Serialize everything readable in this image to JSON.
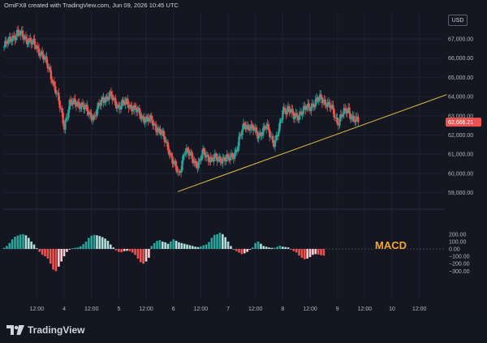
{
  "header": {
    "text": "OmiFX8 created with TradingView.com, Jun 09, 2026 10:45 UTC"
  },
  "currency_label": "USD",
  "last_price_tag": "62,666.21",
  "macd_annotation": "MACD",
  "brand": {
    "name": "TradingView",
    "logo_icon": "tradingview-logo-icon"
  },
  "colors": {
    "background": "#141722",
    "bull": "#26a69a",
    "bear": "#ef5350",
    "trendline": "#e4c441",
    "price_tag": "#ef5350",
    "macd_annotation": "#f5a623",
    "hist_pos_strong": "#26a69a",
    "hist_pos_weak": "#b2dfdb",
    "hist_neg_strong": "#ef5350",
    "hist_neg_weak": "#ffcdd2"
  },
  "chart_data": [
    {
      "type": "candlestick",
      "title": "",
      "y_axis_side": "right",
      "ylim": [
        58600,
        67800
      ],
      "y_ticks": [
        59000,
        60000,
        61000,
        62000,
        63000,
        64000,
        65000,
        66000,
        67000
      ],
      "y_tick_labels": [
        "59,000.00",
        "60,000.00",
        "61,000.00",
        "62,000.00",
        "63,000.00",
        "64,000.00",
        "65,000.00",
        "66,000.00",
        "67,000.00"
      ],
      "x_ticks": [
        {
          "label": "12:00",
          "x": 0.5
        },
        {
          "label": "4",
          "x": 1
        },
        {
          "label": "12:00",
          "x": 1.5
        },
        {
          "label": "5",
          "x": 2
        },
        {
          "label": "12:00",
          "x": 2.5
        },
        {
          "label": "6",
          "x": 3
        },
        {
          "label": "12:00",
          "x": 3.5
        },
        {
          "label": "7",
          "x": 4
        },
        {
          "label": "12:00",
          "x": 4.5
        },
        {
          "label": "8",
          "x": 5
        },
        {
          "label": "12:00",
          "x": 5.5
        },
        {
          "label": "9",
          "x": 6
        },
        {
          "label": "12:00",
          "x": 6.5
        },
        {
          "label": "10",
          "x": 7
        },
        {
          "label": "12:00",
          "x": 7.5
        }
      ],
      "close_series": [
        [
          -0.1,
          66600
        ],
        [
          0,
          66900
        ],
        [
          0.05,
          67100
        ],
        [
          0.15,
          67300
        ],
        [
          0.3,
          67050
        ],
        [
          0.45,
          66700
        ],
        [
          0.6,
          66200
        ],
        [
          0.75,
          65200
        ],
        [
          0.85,
          64300
        ],
        [
          1.0,
          62500
        ],
        [
          1.1,
          63600
        ],
        [
          1.25,
          63700
        ],
        [
          1.4,
          63300
        ],
        [
          1.55,
          62900
        ],
        [
          1.7,
          63900
        ],
        [
          1.85,
          64000
        ],
        [
          2.0,
          63500
        ],
        [
          2.15,
          63700
        ],
        [
          2.3,
          63300
        ],
        [
          2.45,
          62900
        ],
        [
          2.6,
          62700
        ],
        [
          2.75,
          62200
        ],
        [
          2.9,
          61400
        ],
        [
          3.0,
          60500
        ],
        [
          3.1,
          59900
        ],
        [
          3.2,
          61200
        ],
        [
          3.35,
          60800
        ],
        [
          3.45,
          60400
        ],
        [
          3.55,
          61100
        ],
        [
          3.7,
          60700
        ],
        [
          3.85,
          60800
        ],
        [
          4.0,
          60700
        ],
        [
          4.15,
          61200
        ],
        [
          4.3,
          62600
        ],
        [
          4.45,
          62300
        ],
        [
          4.55,
          62000
        ],
        [
          4.7,
          62400
        ],
        [
          4.85,
          61600
        ],
        [
          4.95,
          62400
        ],
        [
          5.0,
          63300
        ],
        [
          5.1,
          63400
        ],
        [
          5.2,
          62900
        ],
        [
          5.35,
          63200
        ],
        [
          5.5,
          63500
        ],
        [
          5.6,
          63700
        ],
        [
          5.7,
          63900
        ],
        [
          5.8,
          63700
        ],
        [
          5.9,
          63300
        ],
        [
          6.0,
          62700
        ],
        [
          6.1,
          63100
        ],
        [
          6.2,
          63300
        ],
        [
          6.3,
          62800
        ],
        [
          6.38,
          62666
        ]
      ],
      "trendline": {
        "from": [
          3.08,
          59050
        ],
        "to": [
          8.0,
          64100
        ]
      },
      "last_price": 62666.21
    },
    {
      "type": "histogram",
      "title": "MACD",
      "ylim": [
        -330,
        250
      ],
      "y_ticks": [
        200,
        100,
        0,
        -100,
        -200,
        -300
      ],
      "y_tick_labels": [
        "200.00",
        "100.00",
        "0.00",
        "−100.00",
        "−200.00",
        "−300.00"
      ],
      "series": [
        {
          "x_step": 0.05,
          "x_start": -0.1,
          "values": [
            15,
            40,
            80,
            130,
            165,
            180,
            195,
            200,
            185,
            150,
            100,
            60,
            10,
            -40,
            -80,
            -100,
            -130,
            -200,
            -280,
            -300,
            -240,
            -170,
            -100,
            -40,
            -10,
            10,
            15,
            20,
            35,
            65,
            100,
            150,
            180,
            190,
            185,
            175,
            160,
            140,
            110,
            60,
            20,
            -20,
            -40,
            -45,
            -30,
            -25,
            -30,
            -50,
            -80,
            -130,
            -180,
            -200,
            -170,
            -120,
            40,
            80,
            110,
            120,
            100,
            90,
            70,
            100,
            130,
            110,
            90,
            80,
            70,
            60,
            50,
            40,
            30,
            25,
            35,
            50,
            60,
            95,
            150,
            190,
            200,
            220,
            200,
            160,
            100,
            40,
            0,
            -30,
            -50,
            -70,
            -60,
            -40,
            -10,
            20,
            80,
            100,
            70,
            40,
            30,
            20,
            15,
            15,
            30,
            45,
            30,
            25,
            20,
            -10,
            -30,
            -50,
            -90,
            -120,
            -140,
            -130,
            -110,
            -80,
            -70,
            -75,
            -85,
            -90
          ]
        }
      ]
    }
  ]
}
